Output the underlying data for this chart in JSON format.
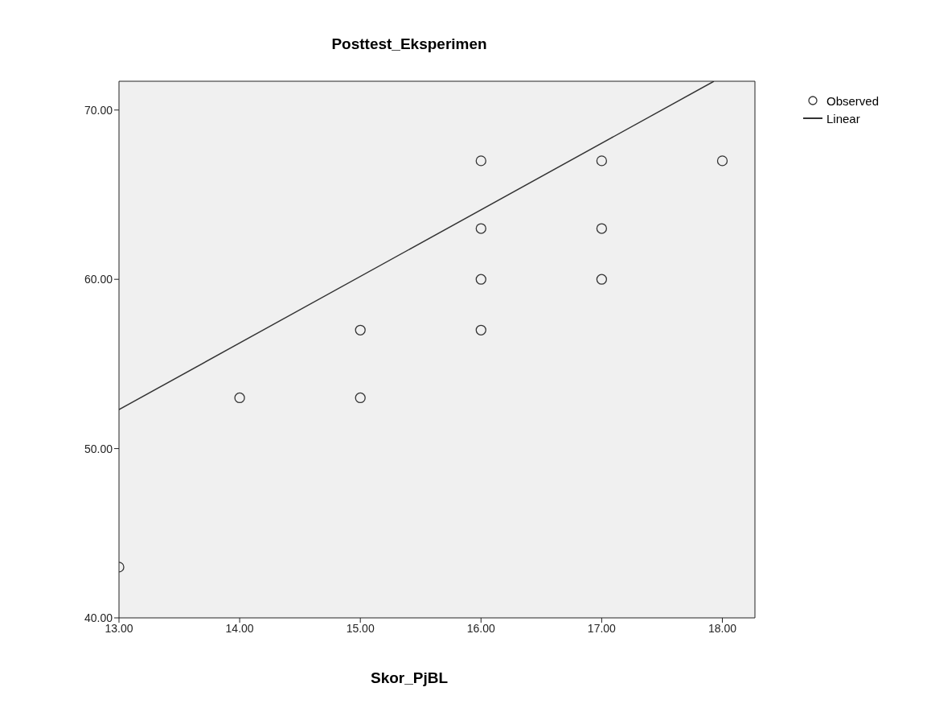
{
  "chart_data": {
    "type": "scatter",
    "title": "Posttest_Eksperimen",
    "xlabel": "Skor_PjBL",
    "xlim": [
      13,
      18.27
    ],
    "ylim": [
      40,
      71.7
    ],
    "xticks": [
      {
        "value": 13,
        "label": "13.00"
      },
      {
        "value": 14,
        "label": "14.00"
      },
      {
        "value": 15,
        "label": "15.00"
      },
      {
        "value": 16,
        "label": "16.00"
      },
      {
        "value": 17,
        "label": "17.00"
      },
      {
        "value": 18,
        "label": "18.00"
      }
    ],
    "yticks": [
      {
        "value": 40,
        "label": "40.00"
      },
      {
        "value": 50,
        "label": "50.00"
      },
      {
        "value": 60,
        "label": "60.00"
      },
      {
        "value": 70,
        "label": "70.00"
      }
    ],
    "grid": false,
    "legend": "top right",
    "series": [
      {
        "name": "Observed",
        "marker": "circle",
        "color": "#333333",
        "x": [
          13,
          14,
          15,
          15,
          16,
          16,
          16,
          16,
          17,
          17,
          17,
          18
        ],
        "values": [
          43,
          53,
          57,
          53,
          67,
          63,
          60,
          57,
          67,
          63,
          60,
          67
        ]
      },
      {
        "name": "Linear",
        "type": "line",
        "marker": "none",
        "color": "#333333",
        "line_style": "solid",
        "x": [
          13,
          17.93
        ],
        "values": [
          52.3,
          71.7
        ]
      }
    ]
  }
}
